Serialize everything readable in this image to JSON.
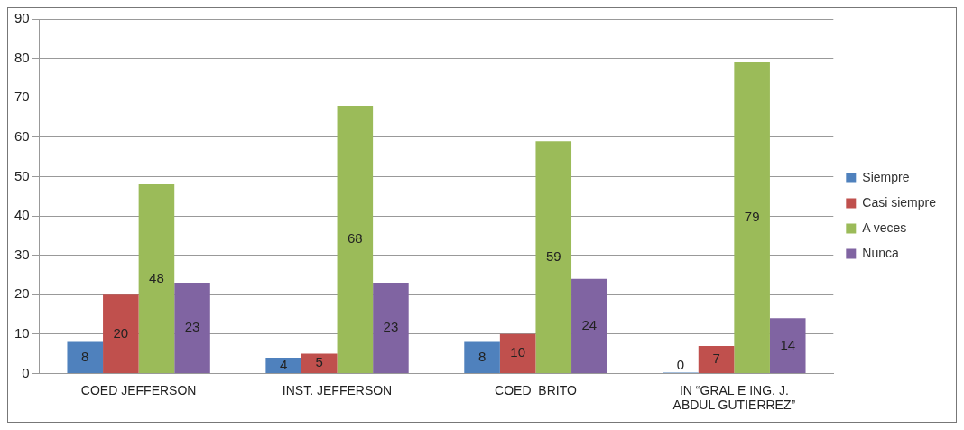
{
  "chart_data": {
    "type": "bar",
    "categories": [
      "COED JEFFERSON",
      "INST. JEFFERSON",
      "COED  BRITO",
      "IN “GRAL E ING. J. ABDUL GUTIERREZ”"
    ],
    "series": [
      {
        "name": "Siempre",
        "color": "#4f81bd",
        "values": [
          8,
          4,
          8,
          0
        ]
      },
      {
        "name": "Casi siempre",
        "color": "#c0504d",
        "values": [
          20,
          5,
          10,
          7
        ]
      },
      {
        "name": "A veces",
        "color": "#9bbb59",
        "values": [
          48,
          68,
          59,
          79
        ]
      },
      {
        "name": "Nunca",
        "color": "#8064a2",
        "values": [
          23,
          23,
          24,
          14
        ]
      }
    ],
    "ylim": [
      0,
      90
    ],
    "yticks": [
      0,
      10,
      20,
      30,
      40,
      50,
      60,
      70,
      80,
      90
    ],
    "grid": "y",
    "legend": "right",
    "data_labels": true
  }
}
